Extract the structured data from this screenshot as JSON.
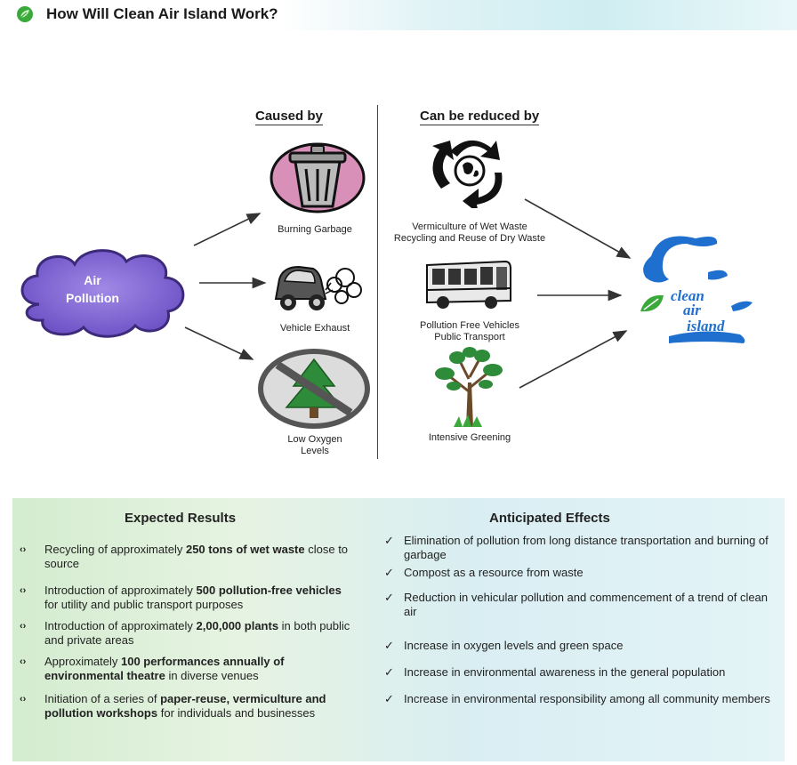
{
  "title": "How Will Clean Air Island Work?",
  "columns": {
    "caused_by": "Caused by",
    "reduced_by": "Can be reduced by"
  },
  "cloud_label": [
    "Air",
    "Pollution"
  ],
  "causes": [
    {
      "icon": "trash-can-icon",
      "caption": "Burning Garbage"
    },
    {
      "icon": "car-exhaust-icon",
      "caption": "Vehicle Exhaust"
    },
    {
      "icon": "no-trees-icon",
      "caption": [
        "Low Oxygen",
        "Levels"
      ]
    }
  ],
  "solutions": [
    {
      "icon": "recycle-icon",
      "caption": [
        "Vermiculture of Wet Waste",
        "Recycling and Reuse of Dry Waste"
      ]
    },
    {
      "icon": "bus-icon",
      "caption": [
        "Pollution Free Vehicles",
        "Public Transport"
      ]
    },
    {
      "icon": "tree-icon",
      "caption": "Intensive Greening"
    }
  ],
  "logo_text": [
    "clean",
    "air",
    "island"
  ],
  "expected_results": {
    "heading": "Expected Results",
    "items": [
      [
        {
          "t": "Recycling of approximately "
        },
        {
          "t": "250 tons of wet waste",
          "b": true
        },
        {
          "t": " close to source"
        }
      ],
      [
        {
          "t": "Introduction of approximately "
        },
        {
          "t": "500 pollution-free vehicles",
          "b": true
        },
        {
          "t": " for utility and public transport purposes"
        }
      ],
      [
        {
          "t": "Introduction of approximately "
        },
        {
          "t": "2,00,000 plants",
          "b": true
        },
        {
          "t": " in both public and private areas"
        }
      ],
      [
        {
          "t": "Approximately "
        },
        {
          "t": "100 performances annually of environmental theatre",
          "b": true
        },
        {
          "t": " in diverse venues"
        }
      ],
      [
        {
          "t": "Initiation of a series of "
        },
        {
          "t": "paper-reuse, vermiculture and pollution workshops",
          "b": true
        },
        {
          "t": " for individuals and businesses"
        }
      ]
    ]
  },
  "anticipated_effects": {
    "heading": "Anticipated Effects",
    "items": [
      "Elimination of pollution from long distance transportation and burning of garbage",
      "Compost as a resource from waste",
      "Reduction in vehicular pollution and commencement of a trend of clean air",
      "Increase in oxygen levels and green space",
      "Increase in environmental awareness in the general population",
      "Increase in environmental responsibility among all community members"
    ]
  },
  "colors": {
    "cloud": "#8a6fd6",
    "cloud_edge": "#3d2a7a",
    "logo_blue": "#1f6fcf",
    "logo_green": "#3aa83a",
    "tree_green": "#2e8b3a",
    "trash_pink": "#d88fb8"
  }
}
